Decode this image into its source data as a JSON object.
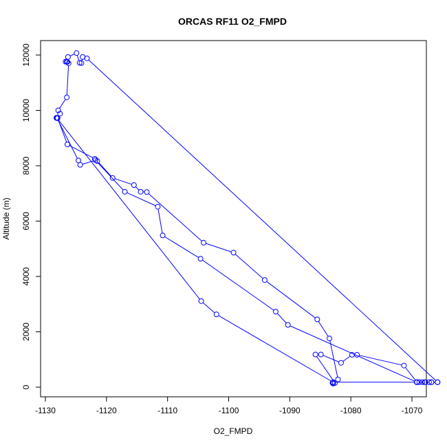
{
  "chart_data": {
    "type": "scatter",
    "title": "ORCAS RF11 O2_FMPD",
    "xlabel": "O2_FMPD",
    "ylabel": "Altitude (m)",
    "xlim": [
      -1130,
      -1065
    ],
    "ylim": [
      0,
      12000
    ],
    "xticks": [
      -1130,
      -1120,
      -1110,
      -1100,
      -1090,
      -1080,
      -1070
    ],
    "yticks": [
      0,
      2000,
      4000,
      6000,
      8000,
      10000,
      12000
    ],
    "series": [
      {
        "color": "#0000ff",
        "points": [
          [
            -1065.8,
            180
          ],
          [
            -1066.8,
            180
          ],
          [
            -1067.2,
            180
          ],
          [
            -1067.9,
            180
          ],
          [
            -1068.3,
            180
          ],
          [
            -1068.8,
            180
          ],
          [
            -1069.2,
            180
          ],
          [
            -1071.3,
            780
          ],
          [
            -1079.0,
            1170
          ],
          [
            -1079.8,
            1170
          ],
          [
            -1081.6,
            880
          ],
          [
            -1084.9,
            1180
          ],
          [
            -1085.8,
            1180
          ],
          [
            -1082.6,
            150
          ],
          [
            -1082.9,
            130
          ],
          [
            -1083.0,
            160
          ],
          [
            -1082.1,
            280
          ],
          [
            -1083.5,
            1760
          ],
          [
            -1085.5,
            2450
          ],
          [
            -1094.1,
            3870
          ],
          [
            -1099.2,
            4860
          ],
          [
            -1104.1,
            5220
          ],
          [
            -1113.4,
            7050
          ],
          [
            -1114.4,
            7060
          ],
          [
            -1115.5,
            7300
          ],
          [
            -1119.0,
            7560
          ],
          [
            -1121.5,
            8170
          ],
          [
            -1121.9,
            8250
          ],
          [
            -1126.4,
            8770
          ],
          [
            -1128.0,
            9720
          ],
          [
            -1128.2,
            9730
          ],
          [
            -1127.6,
            9880
          ],
          [
            -1127.9,
            10000
          ],
          [
            -1126.5,
            10470
          ],
          [
            -1126.2,
            11700
          ],
          [
            -1126.4,
            11750
          ],
          [
            -1126.7,
            11760
          ],
          [
            -1126.5,
            11760
          ],
          [
            -1126.3,
            11930
          ],
          [
            -1124.9,
            12070
          ],
          [
            -1124.4,
            11720
          ],
          [
            -1124.1,
            11710
          ],
          [
            -1123.9,
            11930
          ],
          [
            -1123.2,
            11880
          ],
          [
            -1065.8,
            180
          ],
          [
            -1066.8,
            180
          ],
          [
            -1067.8,
            180
          ],
          [
            -1069.2,
            180
          ],
          [
            -1069.2,
            180
          ],
          [
            -1090.3,
            2250
          ],
          [
            -1092.3,
            2730
          ],
          [
            -1104.6,
            4640
          ],
          [
            -1110.8,
            5480
          ],
          [
            -1111.6,
            6520
          ],
          [
            -1117.0,
            7060
          ],
          [
            -1121.8,
            8200
          ],
          [
            -1124.3,
            8030
          ],
          [
            -1124.6,
            8190
          ],
          [
            -1128.1,
            9720
          ],
          [
            -1104.5,
            3110
          ],
          [
            -1102.0,
            2630
          ],
          [
            -1082.9,
            180
          ],
          [
            -1069.2,
            180
          ]
        ]
      }
    ]
  }
}
